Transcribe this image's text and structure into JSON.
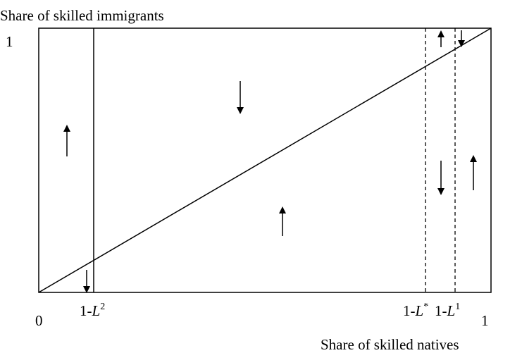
{
  "y_axis_label": "Share of skilled immigrants",
  "x_axis_label": "Share of skilled natives",
  "origin_label": "0",
  "y_max_label": "1",
  "x_max_label": "1",
  "thresholds": [
    {
      "prefix": "1-",
      "variable": "L",
      "superscript": "2"
    },
    {
      "prefix": "1-",
      "variable": "L",
      "superscript": "*"
    },
    {
      "prefix": "1-",
      "variable": "L",
      "superscript": "1"
    }
  ]
}
